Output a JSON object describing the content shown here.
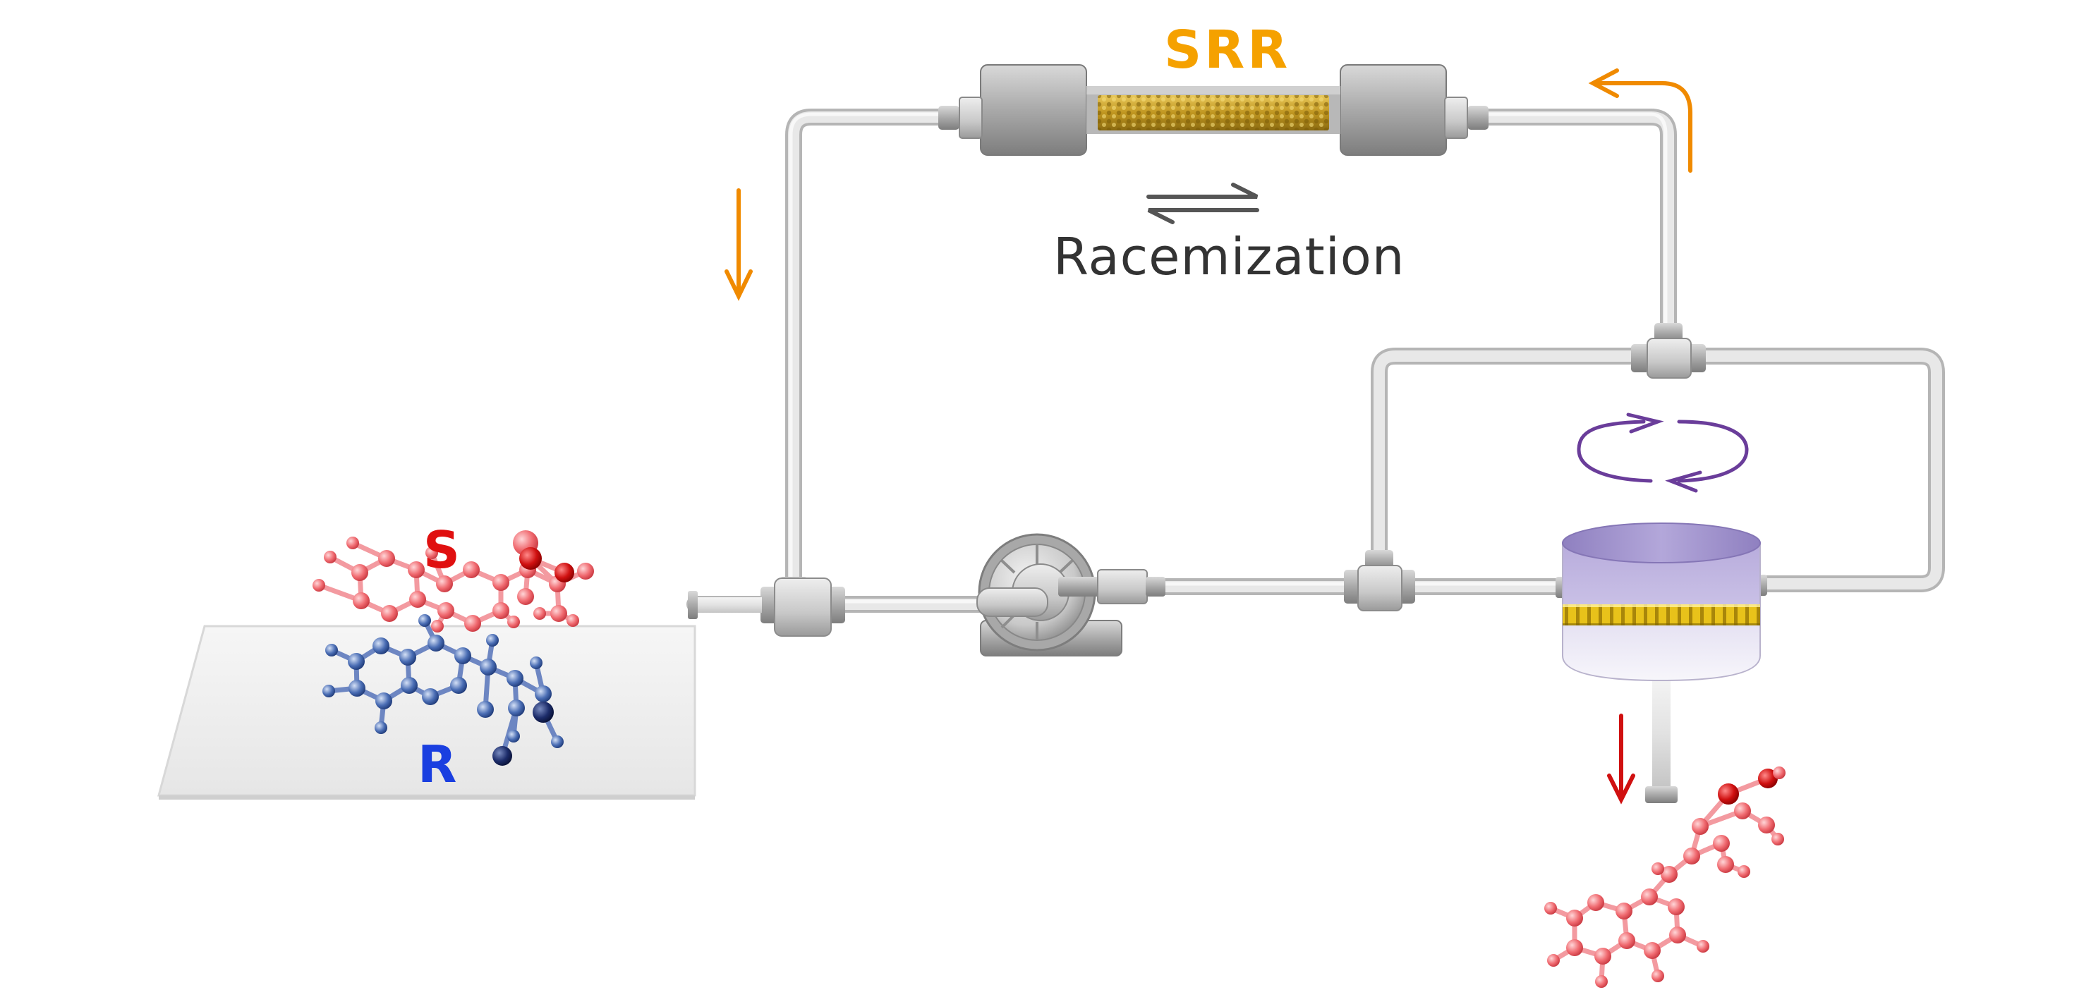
{
  "labels": {
    "column": "SRR",
    "process": "Racemization",
    "enantiomer_s": "S",
    "enantiomer_r": "R"
  },
  "colors": {
    "column_label": "#F5A100",
    "process_label": "#333333",
    "s_label": "#E01010",
    "r_label": "#1A3FE0",
    "flow_arrow": "#F08A00",
    "product_arrow": "#D01010",
    "stir_arrow": "#6A3D9A",
    "s_molecule": "#F06A70",
    "r_molecule": "#3C5FA8",
    "tubing": "#DADADA",
    "fitting": "#BDBDBD",
    "column_body": "#9E9E9E",
    "column_packing": "#C8A020",
    "reactor_top": "#9B8CC8",
    "reactor_band": "#D9B000",
    "crystal_surface": "#EEEEEE"
  },
  "icons": {
    "equilibrium": "equilibrium-arrows-icon",
    "pump": "pump-icon",
    "reactor": "crystallizer-icon",
    "stir": "circular-arrows-icon"
  }
}
